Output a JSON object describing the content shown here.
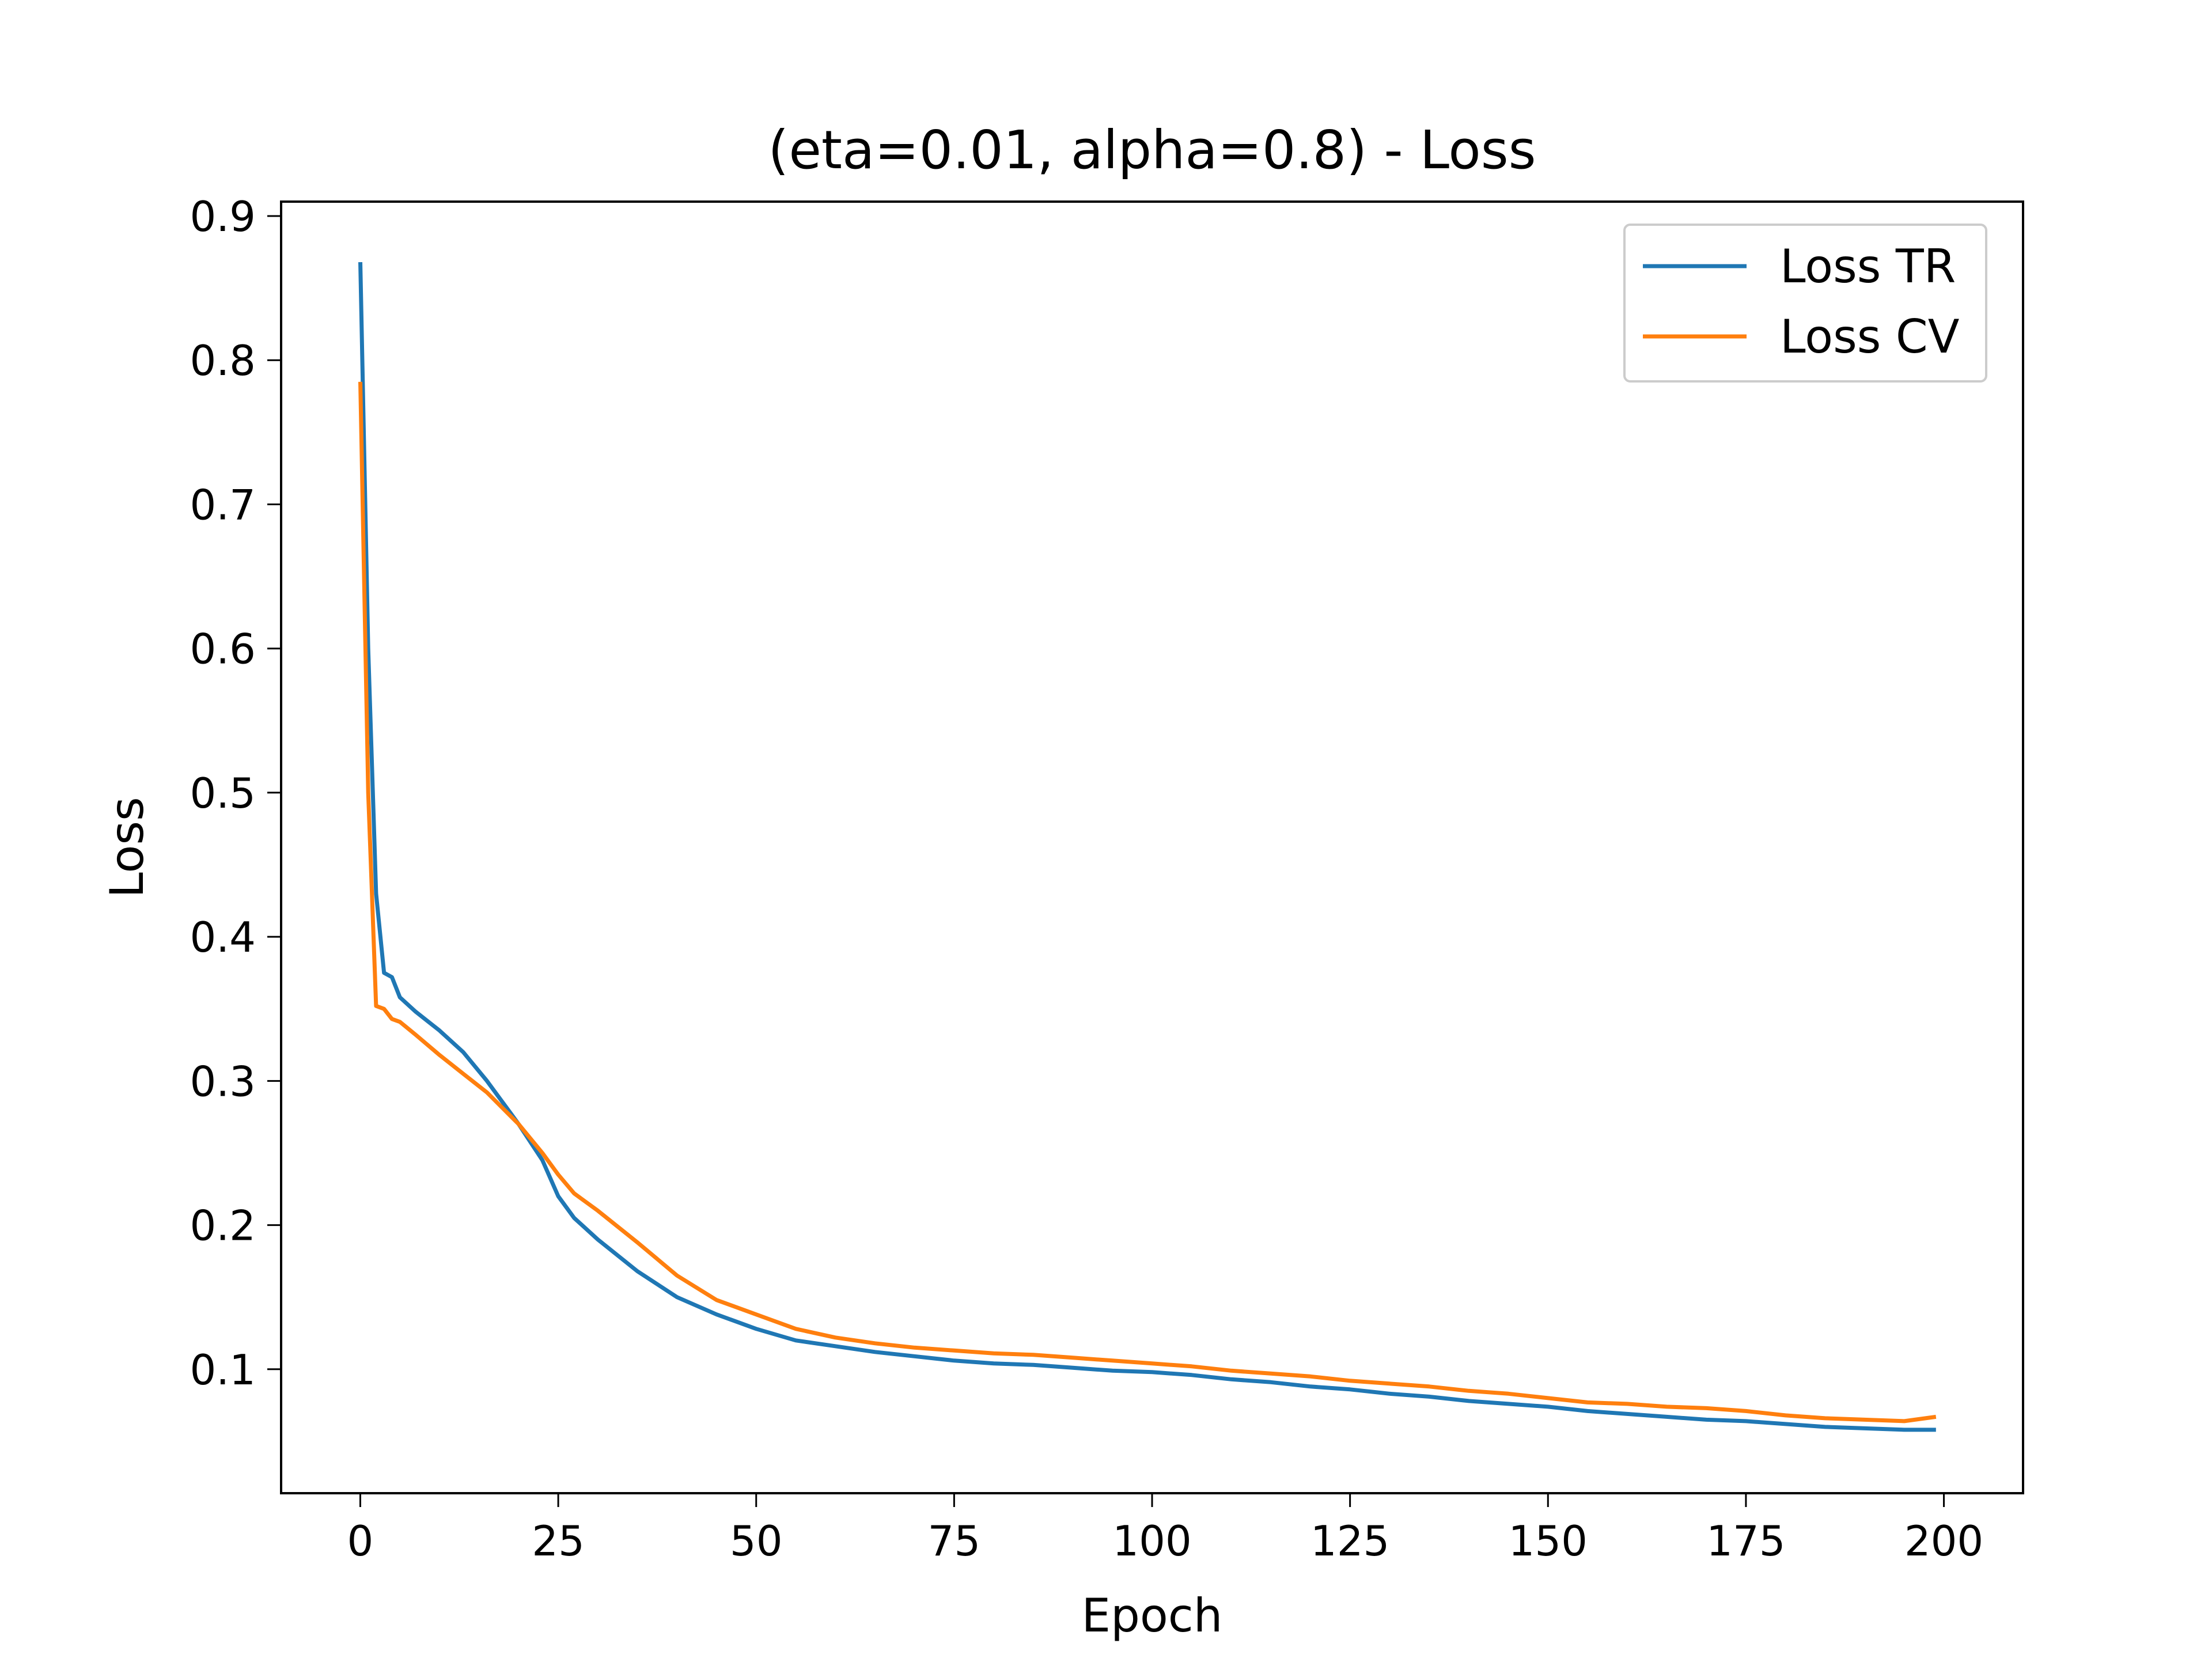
{
  "chart_data": {
    "type": "line",
    "title": "(eta=0.01, alpha=0.8) - Loss",
    "xlabel": "Epoch",
    "ylabel": "Loss",
    "xlim": [
      -10,
      210
    ],
    "ylim": [
      0.014,
      0.91
    ],
    "xticks": [
      0,
      25,
      50,
      75,
      100,
      125,
      150,
      175,
      200
    ],
    "yticks": [
      0.1,
      0.2,
      0.3,
      0.4,
      0.5,
      0.6,
      0.7,
      0.8,
      0.9
    ],
    "grid": false,
    "legend_position": "top-right",
    "series": [
      {
        "name": "Loss TR",
        "color": "#1f77b4",
        "points": [
          [
            0,
            0.868
          ],
          [
            1,
            0.6
          ],
          [
            2,
            0.43
          ],
          [
            3,
            0.375
          ],
          [
            4,
            0.372
          ],
          [
            5,
            0.358
          ],
          [
            7,
            0.348
          ],
          [
            10,
            0.335
          ],
          [
            13,
            0.32
          ],
          [
            16,
            0.3
          ],
          [
            20,
            0.27
          ],
          [
            23,
            0.245
          ],
          [
            25,
            0.22
          ],
          [
            27,
            0.205
          ],
          [
            30,
            0.19
          ],
          [
            35,
            0.168
          ],
          [
            40,
            0.15
          ],
          [
            45,
            0.138
          ],
          [
            50,
            0.128
          ],
          [
            55,
            0.12
          ],
          [
            60,
            0.116
          ],
          [
            65,
            0.112
          ],
          [
            70,
            0.109
          ],
          [
            75,
            0.106
          ],
          [
            80,
            0.104
          ],
          [
            85,
            0.103
          ],
          [
            90,
            0.101
          ],
          [
            95,
            0.099
          ],
          [
            100,
            0.098
          ],
          [
            105,
            0.096
          ],
          [
            110,
            0.093
          ],
          [
            115,
            0.091
          ],
          [
            120,
            0.088
          ],
          [
            125,
            0.086
          ],
          [
            130,
            0.083
          ],
          [
            135,
            0.081
          ],
          [
            140,
            0.078
          ],
          [
            145,
            0.076
          ],
          [
            150,
            0.074
          ],
          [
            155,
            0.071
          ],
          [
            160,
            0.069
          ],
          [
            165,
            0.067
          ],
          [
            170,
            0.065
          ],
          [
            175,
            0.064
          ],
          [
            180,
            0.062
          ],
          [
            185,
            0.06
          ],
          [
            190,
            0.059
          ],
          [
            195,
            0.058
          ],
          [
            199,
            0.058
          ]
        ]
      },
      {
        "name": "Loss CV",
        "color": "#ff7f0e",
        "points": [
          [
            0,
            0.785
          ],
          [
            1,
            0.5
          ],
          [
            2,
            0.352
          ],
          [
            3,
            0.35
          ],
          [
            4,
            0.343
          ],
          [
            5,
            0.341
          ],
          [
            7,
            0.332
          ],
          [
            10,
            0.318
          ],
          [
            13,
            0.305
          ],
          [
            16,
            0.292
          ],
          [
            20,
            0.27
          ],
          [
            23,
            0.25
          ],
          [
            25,
            0.235
          ],
          [
            27,
            0.222
          ],
          [
            30,
            0.21
          ],
          [
            35,
            0.188
          ],
          [
            40,
            0.165
          ],
          [
            45,
            0.148
          ],
          [
            50,
            0.138
          ],
          [
            55,
            0.128
          ],
          [
            60,
            0.122
          ],
          [
            65,
            0.118
          ],
          [
            70,
            0.115
          ],
          [
            75,
            0.113
          ],
          [
            80,
            0.111
          ],
          [
            85,
            0.11
          ],
          [
            90,
            0.108
          ],
          [
            95,
            0.106
          ],
          [
            100,
            0.104
          ],
          [
            105,
            0.102
          ],
          [
            110,
            0.099
          ],
          [
            115,
            0.097
          ],
          [
            120,
            0.095
          ],
          [
            125,
            0.092
          ],
          [
            130,
            0.09
          ],
          [
            135,
            0.088
          ],
          [
            140,
            0.085
          ],
          [
            145,
            0.083
          ],
          [
            150,
            0.08
          ],
          [
            155,
            0.077
          ],
          [
            160,
            0.076
          ],
          [
            165,
            0.074
          ],
          [
            170,
            0.073
          ],
          [
            175,
            0.071
          ],
          [
            180,
            0.068
          ],
          [
            185,
            0.066
          ],
          [
            190,
            0.065
          ],
          [
            195,
            0.064
          ],
          [
            199,
            0.067
          ]
        ]
      }
    ]
  }
}
